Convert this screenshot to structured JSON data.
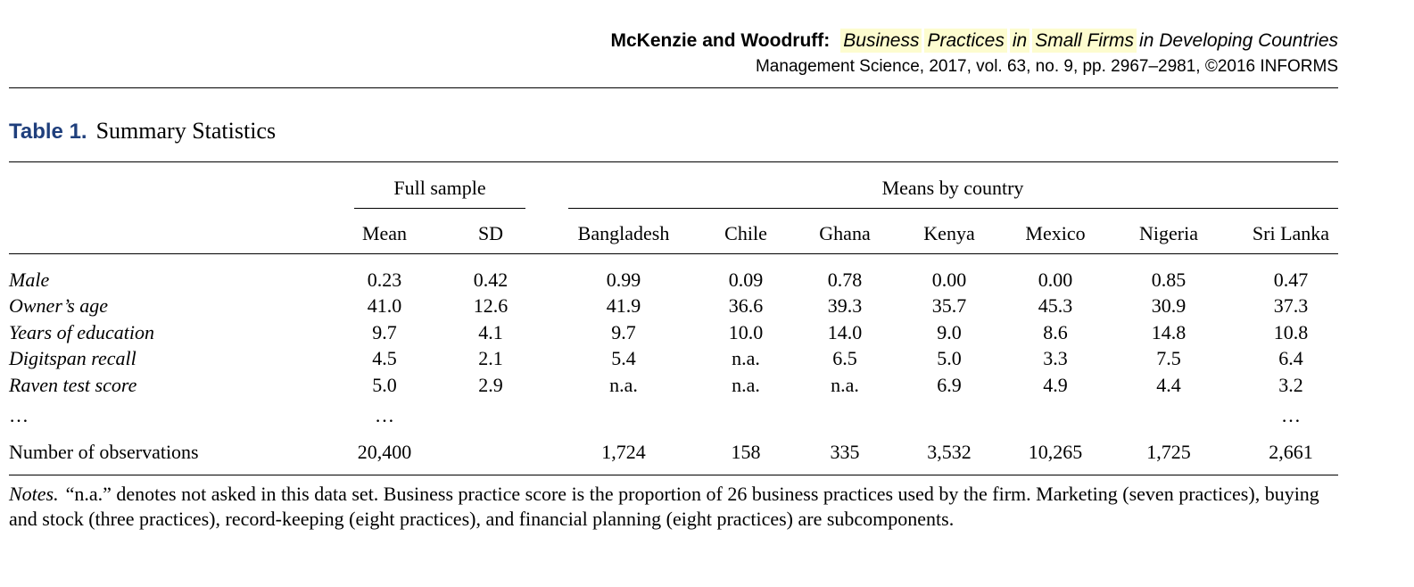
{
  "header": {
    "authors": "McKenzie and Woodruff:",
    "title_highlighted": [
      "Business",
      "Practices",
      "in",
      "Small Firms"
    ],
    "title_rest": "in Developing Countries",
    "citation": "Management Science, 2017, vol. 63, no. 9, pp. 2967–2981, ©2016 INFORMS"
  },
  "table": {
    "label": "Table 1.",
    "caption": "Summary Statistics",
    "group_headers": {
      "full_sample": "Full sample",
      "means_by_country": "Means by country"
    },
    "columns": [
      "Mean",
      "SD",
      "Bangladesh",
      "Chile",
      "Ghana",
      "Kenya",
      "Mexico",
      "Nigeria",
      "Sri Lanka"
    ],
    "rows": [
      {
        "label": "Male",
        "values": [
          "0.23",
          "0.42",
          "0.99",
          "0.09",
          "0.78",
          "0.00",
          "0.00",
          "0.85",
          "0.47"
        ]
      },
      {
        "label": "Owner’s age",
        "values": [
          "41.0",
          "12.6",
          "41.9",
          "36.6",
          "39.3",
          "35.7",
          "45.3",
          "30.9",
          "37.3"
        ]
      },
      {
        "label": "Years of education",
        "values": [
          "9.7",
          "4.1",
          "9.7",
          "10.0",
          "14.0",
          "9.0",
          "8.6",
          "14.8",
          "10.8"
        ]
      },
      {
        "label": "Digitspan recall",
        "values": [
          "4.5",
          "2.1",
          "5.4",
          "n.a.",
          "6.5",
          "5.0",
          "3.3",
          "7.5",
          "6.4"
        ]
      },
      {
        "label": "Raven test score",
        "values": [
          "5.0",
          "2.9",
          "n.a.",
          "n.a.",
          "n.a.",
          "6.9",
          "4.9",
          "4.4",
          "3.2"
        ]
      },
      {
        "label": "…",
        "values": [
          "…",
          "",
          "",
          "",
          "",
          "",
          "",
          "",
          "…"
        ]
      }
    ],
    "observations": {
      "label": "Number of observations",
      "values": [
        "20,400",
        "",
        "1,724",
        "158",
        "335",
        "3,532",
        "10,265",
        "1,725",
        "2,661"
      ]
    }
  },
  "notes": {
    "lead": "Notes.",
    "text": "“n.a.” denotes not asked in this data set. Business practice score is the proportion of 26 business practices used by the firm. Marketing (seven practices), buying and stock (three practices), record-keeping (eight practices), and financial planning (eight practices) are subcomponents."
  }
}
